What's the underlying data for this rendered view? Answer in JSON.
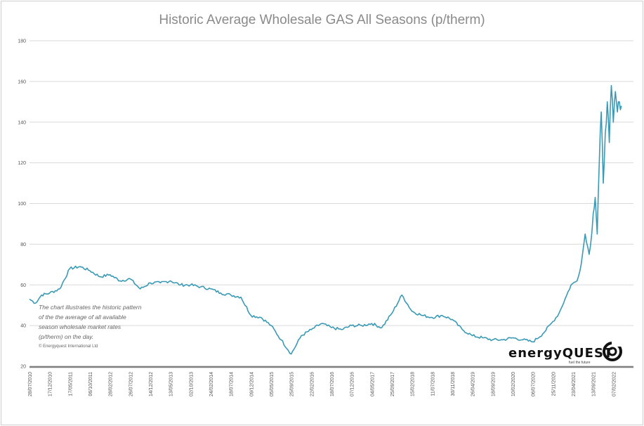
{
  "chart_data": {
    "type": "line",
    "title": "Historic Average Wholesale GAS All Seasons (p/therm)",
    "xlabel": "",
    "ylabel": "",
    "ylim": [
      20,
      180
    ],
    "y_ticks": [
      "20",
      "40",
      "60",
      "80",
      "100",
      "120",
      "140",
      "160",
      "180"
    ],
    "x_ticks": [
      "28/07/2010",
      "17/12/2010",
      "17/05/2011",
      "06/10/2011",
      "28/02/2012",
      "26/07/2012",
      "14/12/2012",
      "13/05/2013",
      "02/10/2013",
      "24/02/2014",
      "18/07/2014",
      "09/12/2014",
      "05/05/2015",
      "25/09/2015",
      "22/02/2016",
      "18/07/2016",
      "07/12/2016",
      "04/05/2017",
      "25/09/2017",
      "15/02/2018",
      "11/07/2018",
      "30/11/2018",
      "26/04/2019",
      "18/09/2019",
      "10/02/2020",
      "06/07/2020",
      "25/11/2020",
      "23/04/2021",
      "13/09/2021",
      "07/02/2022"
    ],
    "grid": true,
    "series": [
      {
        "color": "#3a9ab5",
        "x": [
          0,
          0.3,
          0.6,
          1,
          1.5,
          2,
          2.5,
          3,
          3.5,
          4,
          4.5,
          5,
          5.5,
          6,
          6.5,
          7,
          7.5,
          8,
          8.5,
          9,
          9.5,
          10,
          10.5,
          11,
          11.5,
          12,
          12.5,
          13,
          13.5,
          14,
          14.5,
          15,
          15.5,
          16,
          16.5,
          17,
          17.5,
          18,
          18.5,
          19,
          19.5,
          20,
          20.5,
          21,
          21.5,
          22,
          22.5,
          23,
          23.5,
          24,
          24.5,
          25,
          25.5,
          26,
          26.3,
          26.6,
          26.9,
          27.2,
          27.4,
          27.6,
          27.8,
          28,
          28.1,
          28.2,
          28.3,
          28.4,
          28.5,
          28.6,
          28.7,
          28.8,
          28.9,
          29,
          29.1,
          29.2,
          29.3,
          29.4
        ],
        "y": [
          53,
          51,
          55,
          56,
          58,
          68,
          69,
          67,
          64,
          65,
          62,
          63,
          58,
          61,
          61,
          62,
          60,
          60,
          59,
          58,
          56,
          55,
          54,
          45,
          44,
          40,
          33,
          26,
          35,
          38,
          41,
          39,
          38,
          40,
          40,
          41,
          39,
          46,
          55,
          47,
          45,
          44,
          45,
          43,
          38,
          35,
          34,
          33,
          33,
          34,
          33,
          32,
          36,
          42,
          46,
          53,
          60,
          62,
          70,
          85,
          75,
          95,
          103,
          85,
          120,
          145,
          110,
          135,
          150,
          130,
          158,
          140,
          155,
          145,
          150,
          148
        ]
      }
    ],
    "annotation": "The chart illustrates the historic pattern of the the average of all available season wholesale market rates (p/therm) on the day.",
    "copyright": "© Energyquest International Ltd",
    "logo": "energyQUEST",
    "logo_tag": "fuel the future"
  }
}
